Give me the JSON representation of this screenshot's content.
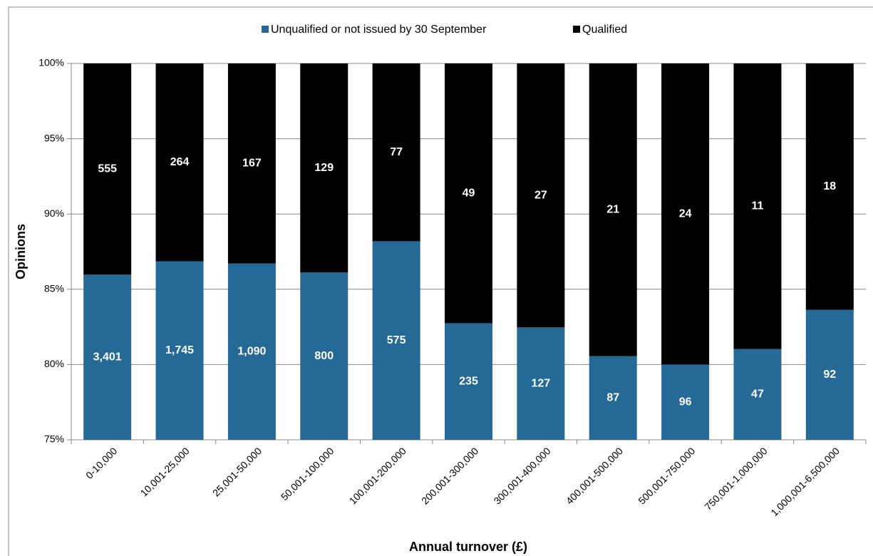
{
  "chart_data": {
    "type": "bar",
    "stacking": "percent",
    "xlabel": "Annual turnover (£)",
    "ylabel": "Opinions",
    "categories": [
      "0-10,000",
      "10,001-25,000",
      "25,001-50,000",
      "50,001-100,000",
      "100,001-200,000",
      "200,001-300,000",
      "300,001-400,000",
      "400,001-500,000",
      "500,001-750,000",
      "750,001-1,000,000",
      "1,000,001-6,500,000"
    ],
    "series": [
      {
        "name": "Unqualified or not issued by 30 September",
        "color": "#256a96",
        "values": [
          3401,
          1745,
          1090,
          800,
          575,
          235,
          127,
          87,
          96,
          47,
          92
        ],
        "value_labels": [
          "3,401",
          "1,745",
          "1,090",
          "800",
          "575",
          "235",
          "127",
          "87",
          "96",
          "47",
          "92"
        ]
      },
      {
        "name": "Qualified",
        "color": "#000000",
        "values": [
          555,
          264,
          167,
          129,
          77,
          49,
          27,
          21,
          24,
          11,
          18
        ]
      }
    ],
    "ylim": [
      75,
      100
    ],
    "yticks": [
      {
        "value": 75,
        "label": "75%"
      },
      {
        "value": 80,
        "label": "80%"
      },
      {
        "value": 85,
        "label": "85%"
      },
      {
        "value": 90,
        "label": "90%"
      },
      {
        "value": 95,
        "label": "95%"
      },
      {
        "value": 100,
        "label": "100%"
      }
    ],
    "grid": true,
    "legend": "top"
  }
}
